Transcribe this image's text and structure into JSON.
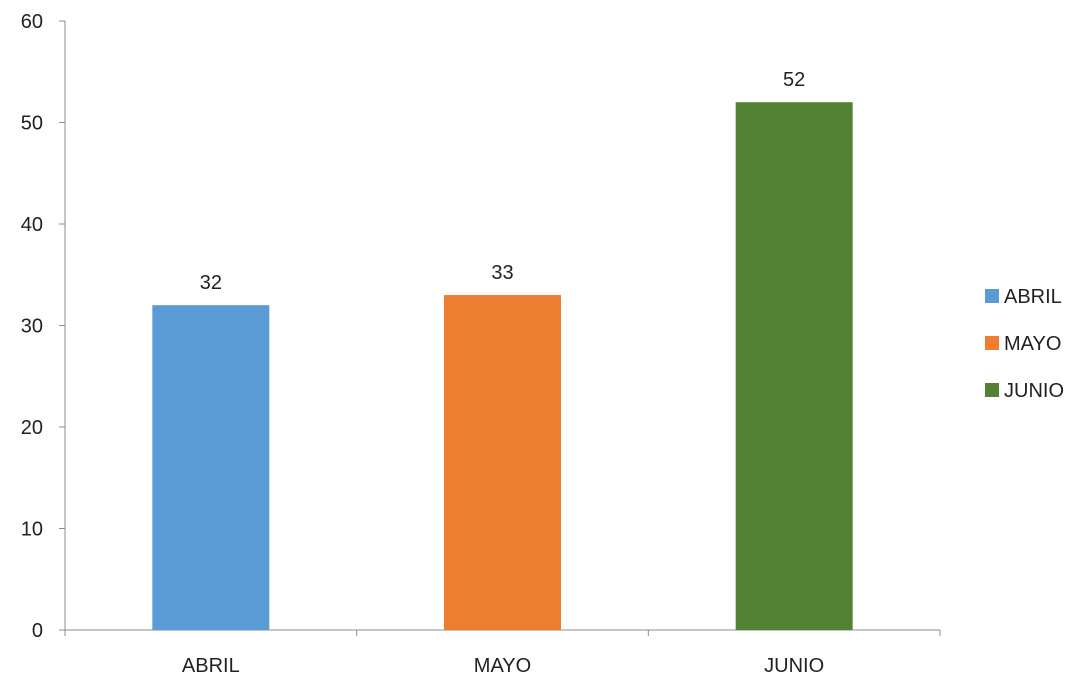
{
  "chart_data": {
    "type": "bar",
    "categories": [
      "ABRIL",
      "MAYO",
      "JUNIO"
    ],
    "values": [
      32,
      33,
      52
    ],
    "colors": [
      "#5b9bd5",
      "#ed7d31",
      "#548235"
    ],
    "yticks": [
      "0",
      "10",
      "20",
      "30",
      "40",
      "50",
      "60"
    ],
    "ylim": [
      0,
      60
    ],
    "grid": false,
    "legend": {
      "placement": "right",
      "entries": [
        "ABRIL",
        "MAYO",
        "JUNIO"
      ]
    }
  }
}
